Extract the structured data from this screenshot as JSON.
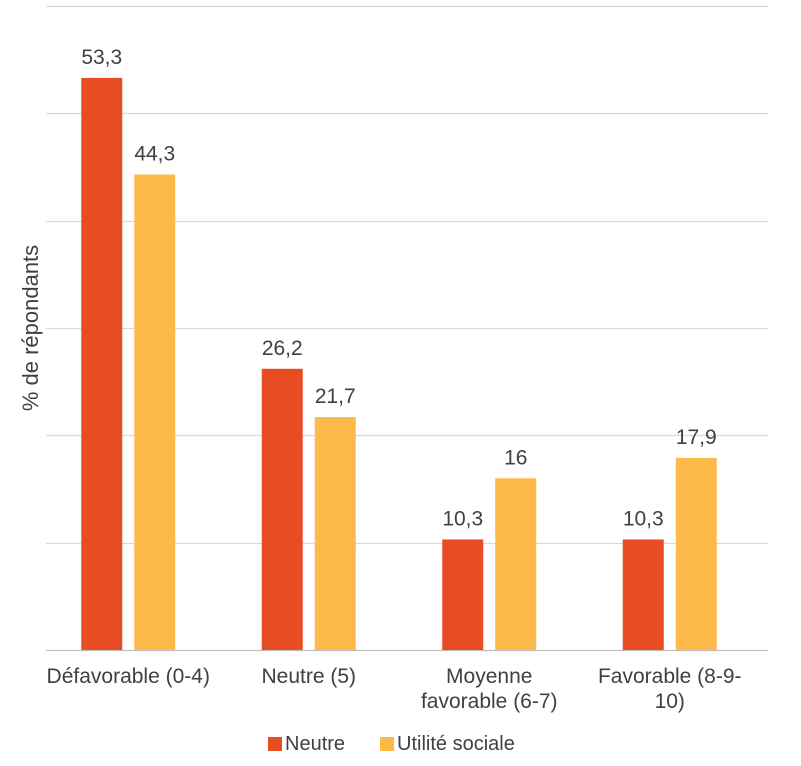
{
  "chart_data": {
    "type": "bar",
    "categories": [
      "Défavorable (0-4)",
      "Neutre (5)",
      "Moyenne favorable (6-7)",
      "Favorable (8-9-10)"
    ],
    "series": [
      {
        "name": "Neutre",
        "values": [
          53.3,
          26.2,
          10.3,
          10.3
        ],
        "labels": [
          "53,3",
          "26,2",
          "10,3",
          "10,3"
        ],
        "color": "#E84C22"
      },
      {
        "name": "Utilité sociale",
        "values": [
          44.3,
          21.7,
          16,
          17.9
        ],
        "labels": [
          "44,3",
          "21,7",
          "16",
          "17,9"
        ],
        "color": "#FDB94A"
      }
    ],
    "ylabel": "% de répondants",
    "ylim": [
      0,
      60
    ],
    "grid": true,
    "legend": "bottom"
  }
}
